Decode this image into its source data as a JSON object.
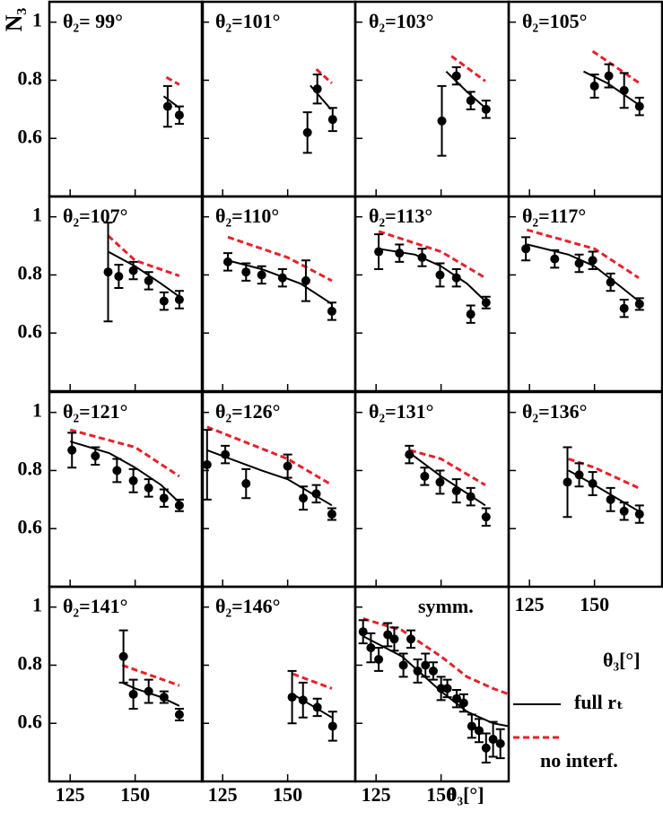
{
  "chart_data": {
    "type": "scatter",
    "y_label": "N₃",
    "x_label": "θ₃[°]",
    "xlim": [
      117,
      176
    ],
    "ylim": [
      0.4,
      1.07
    ],
    "xticks": [
      125,
      150
    ],
    "yticks": [
      0.6,
      0.8,
      1
    ],
    "legend": [
      {
        "name": "full rₜ",
        "color": "#000000",
        "style": "solid"
      },
      {
        "name": "no interf.",
        "color": "#e8202a",
        "style": "dashed"
      }
    ],
    "panels": [
      {
        "title": "θ₂= 99°",
        "points": {
          "x": [
            162.5,
            167
          ],
          "values": [
            0.71,
            0.68
          ],
          "errors": [
            0.07,
            0.03
          ]
        },
        "series": [
          {
            "x": [
              161,
              167
            ],
            "values": [
              0.745,
              0.705
            ]
          },
          {
            "x": [
              162,
              167
            ],
            "values": [
              0.81,
              0.785
            ]
          }
        ]
      },
      {
        "title": "θ₂=101°",
        "points": {
          "x": [
            157.6,
            161.4,
            167.3
          ],
          "values": [
            0.62,
            0.77,
            0.665
          ],
          "errors": [
            0.07,
            0.05,
            0.04
          ]
        },
        "series": [
          {
            "x": [
              158.7,
              166.6
            ],
            "values": [
              0.782,
              0.7
            ]
          },
          {
            "x": [
              161,
              167
            ],
            "values": [
              0.838,
              0.79
            ]
          }
        ]
      },
      {
        "title": "θ₂=103°",
        "points": {
          "x": [
            150.3,
            155.9,
            161.4,
            167.3
          ],
          "values": [
            0.66,
            0.815,
            0.73,
            0.7
          ],
          "errors": [
            0.12,
            0.03,
            0.03,
            0.03
          ]
        },
        "series": [
          {
            "x": [
              152,
              160,
              167
            ],
            "values": [
              0.83,
              0.76,
              0.705
            ]
          },
          {
            "x": [
              154,
              167
            ],
            "values": [
              0.883,
              0.797
            ]
          }
        ]
      },
      {
        "title": "θ₂=105°",
        "points": {
          "x": [
            150,
            155.5,
            161.4,
            167.3
          ],
          "values": [
            0.78,
            0.815,
            0.765,
            0.71
          ],
          "errors": [
            0.04,
            0.04,
            0.06,
            0.03
          ]
        },
        "series": [
          {
            "x": [
              145.8,
              155,
              167.3
            ],
            "values": [
              0.83,
              0.79,
              0.714
            ]
          },
          {
            "x": [
              149.3,
              167.3
            ],
            "values": [
              0.9,
              0.79
            ]
          }
        ]
      },
      {
        "title": "θ₂=107°",
        "points": {
          "x": [
            139.6,
            143.7,
            149.3,
            155.2,
            161.1,
            167
          ],
          "values": [
            0.81,
            0.795,
            0.815,
            0.78,
            0.71,
            0.715
          ],
          "errors": [
            0.17,
            0.04,
            0.03,
            0.03,
            0.03,
            0.03
          ]
        },
        "series": [
          {
            "x": [
              139.6,
              150,
              160,
              167
            ],
            "values": [
              0.88,
              0.83,
              0.77,
              0.725
            ]
          },
          {
            "x": [
              139.6,
              150,
              167
            ],
            "values": [
              0.935,
              0.85,
              0.797
            ]
          }
        ]
      },
      {
        "title": "θ₂=110°",
        "points": {
          "x": [
            127,
            134,
            140,
            148,
            157,
            167
          ],
          "values": [
            0.845,
            0.81,
            0.8,
            0.79,
            0.78,
            0.675
          ],
          "errors": [
            0.03,
            0.03,
            0.03,
            0.03,
            0.07,
            0.03
          ]
        },
        "series": [
          {
            "x": [
              127,
              140,
              155,
              167
            ],
            "values": [
              0.85,
              0.82,
              0.77,
              0.7
            ]
          },
          {
            "x": [
              127,
              150,
              167
            ],
            "values": [
              0.93,
              0.86,
              0.78
            ]
          }
        ]
      },
      {
        "title": "θ₂=113°",
        "points": {
          "x": [
            126,
            134,
            142.7,
            149.6,
            155.9,
            161.4,
            167.3
          ],
          "values": [
            0.88,
            0.875,
            0.86,
            0.8,
            0.79,
            0.665,
            0.705
          ],
          "errors": [
            0.06,
            0.03,
            0.03,
            0.04,
            0.03,
            0.03,
            0.02
          ]
        },
        "series": [
          {
            "x": [
              126,
              140,
              150,
              160,
              167
            ],
            "values": [
              0.89,
              0.87,
              0.83,
              0.77,
              0.71
            ]
          },
          {
            "x": [
              126,
              150,
              167
            ],
            "values": [
              0.95,
              0.88,
              0.79
            ]
          }
        ]
      },
      {
        "title": "θ₂=117°",
        "points": {
          "x": [
            123.6,
            134.7,
            144.1,
            149.3,
            156.2,
            161.4,
            167.3
          ],
          "values": [
            0.89,
            0.855,
            0.84,
            0.85,
            0.775,
            0.685,
            0.7
          ],
          "errors": [
            0.04,
            0.03,
            0.03,
            0.03,
            0.03,
            0.03,
            0.02
          ]
        },
        "series": [
          {
            "x": [
              124,
              140,
              150,
              160,
              167
            ],
            "values": [
              0.905,
              0.87,
              0.83,
              0.76,
              0.71
            ]
          },
          {
            "x": [
              124,
              150,
              167
            ],
            "values": [
              0.955,
              0.89,
              0.79
            ]
          }
        ]
      },
      {
        "title": "θ₂=121°",
        "points": {
          "x": [
            125.7,
            134.7,
            143,
            149.3,
            155.2,
            161.1,
            167
          ],
          "values": [
            0.87,
            0.85,
            0.8,
            0.765,
            0.74,
            0.705,
            0.68
          ],
          "errors": [
            0.06,
            0.03,
            0.04,
            0.04,
            0.03,
            0.03,
            0.02
          ]
        },
        "series": [
          {
            "x": [
              125,
              140,
              150,
              160,
              167
            ],
            "values": [
              0.9,
              0.86,
              0.81,
              0.75,
              0.69
            ]
          },
          {
            "x": [
              125,
              150,
              167
            ],
            "values": [
              0.94,
              0.88,
              0.78
            ]
          }
        ]
      },
      {
        "title": "θ₂=126°",
        "points": {
          "x": [
            119,
            126,
            134,
            150,
            156,
            161,
            167
          ],
          "values": [
            0.82,
            0.855,
            0.755,
            0.815,
            0.705,
            0.72,
            0.65
          ],
          "errors": [
            0.12,
            0.03,
            0.05,
            0.04,
            0.04,
            0.03,
            0.02
          ]
        },
        "series": [
          {
            "x": [
              119,
              140,
              150,
              167
            ],
            "values": [
              0.87,
              0.8,
              0.77,
              0.68
            ]
          },
          {
            "x": [
              119,
              150,
              167
            ],
            "values": [
              0.95,
              0.84,
              0.75
            ]
          }
        ]
      },
      {
        "title": "θ₂=131°",
        "points": {
          "x": [
            137.8,
            143.7,
            149.6,
            155.9,
            161.4,
            167.3
          ],
          "values": [
            0.855,
            0.78,
            0.76,
            0.73,
            0.71,
            0.64
          ],
          "errors": [
            0.03,
            0.03,
            0.04,
            0.04,
            0.03,
            0.03
          ]
        },
        "series": [
          {
            "x": [
              138,
              150,
              167
            ],
            "values": [
              0.86,
              0.78,
              0.68
            ]
          },
          {
            "x": [
              138,
              150,
              167
            ],
            "values": [
              0.87,
              0.84,
              0.75
            ]
          }
        ]
      },
      {
        "title": "θ₂=136°",
        "points": {
          "x": [
            139.6,
            144.1,
            149.3,
            156.2,
            161.4,
            167.3
          ],
          "values": [
            0.76,
            0.785,
            0.755,
            0.7,
            0.66,
            0.65
          ],
          "errors": [
            0.12,
            0.04,
            0.04,
            0.04,
            0.03,
            0.03
          ]
        },
        "series": [
          {
            "x": [
              140,
              150,
              167
            ],
            "values": [
              0.8,
              0.75,
              0.66
            ]
          },
          {
            "x": [
              140,
              150,
              167
            ],
            "values": [
              0.84,
              0.81,
              0.74
            ]
          }
        ]
      },
      {
        "title": "θ₂=141°",
        "points": {
          "x": [
            145.5,
            149.3,
            155.2,
            161.1,
            167
          ],
          "values": [
            0.83,
            0.7,
            0.71,
            0.69,
            0.63
          ],
          "errors": [
            0.09,
            0.05,
            0.04,
            0.02,
            0.02
          ]
        },
        "series": [
          {
            "x": [
              145,
              150,
              160,
              167
            ],
            "values": [
              0.74,
              0.72,
              0.69,
              0.66
            ]
          },
          {
            "x": [
              145,
              167
            ],
            "values": [
              0.8,
              0.73
            ]
          }
        ]
      },
      {
        "title": "θ₂=146°",
        "points": {
          "x": [
            151.7,
            155.9,
            161.4,
            167.3
          ],
          "values": [
            0.69,
            0.68,
            0.655,
            0.59
          ],
          "errors": [
            0.09,
            0.06,
            0.03,
            0.05
          ]
        },
        "series": [
          {
            "x": [
              152,
              167
            ],
            "values": [
              0.7,
              0.62
            ]
          },
          {
            "x": [
              152,
              167
            ],
            "values": [
              0.77,
              0.72
            ]
          }
        ]
      },
      {
        "title": "symm.",
        "points": {
          "x": [
            120,
            123,
            126,
            129.5,
            132,
            135.5,
            138.4,
            141,
            144,
            147,
            150,
            152.4,
            156,
            158.7,
            161.8,
            164.6,
            167.3,
            170,
            172.8
          ],
          "values": [
            0.915,
            0.86,
            0.82,
            0.905,
            0.89,
            0.8,
            0.89,
            0.78,
            0.8,
            0.78,
            0.72,
            0.72,
            0.685,
            0.67,
            0.59,
            0.575,
            0.515,
            0.545,
            0.53
          ],
          "errors": [
            0.04,
            0.05,
            0.04,
            0.04,
            0.04,
            0.04,
            0.03,
            0.04,
            0.04,
            0.03,
            0.04,
            0.03,
            0.03,
            0.03,
            0.04,
            0.04,
            0.05,
            0.06,
            0.05
          ]
        },
        "series": [
          {
            "x": [
              120,
              135,
              150,
              160,
              170,
              176
            ],
            "values": [
              0.9,
              0.83,
              0.71,
              0.64,
              0.6,
              0.59
            ]
          },
          {
            "x": [
              120,
              135,
              150,
              160,
              170,
              176
            ],
            "values": [
              0.96,
              0.92,
              0.83,
              0.76,
              0.72,
              0.7
            ]
          }
        ]
      }
    ]
  }
}
